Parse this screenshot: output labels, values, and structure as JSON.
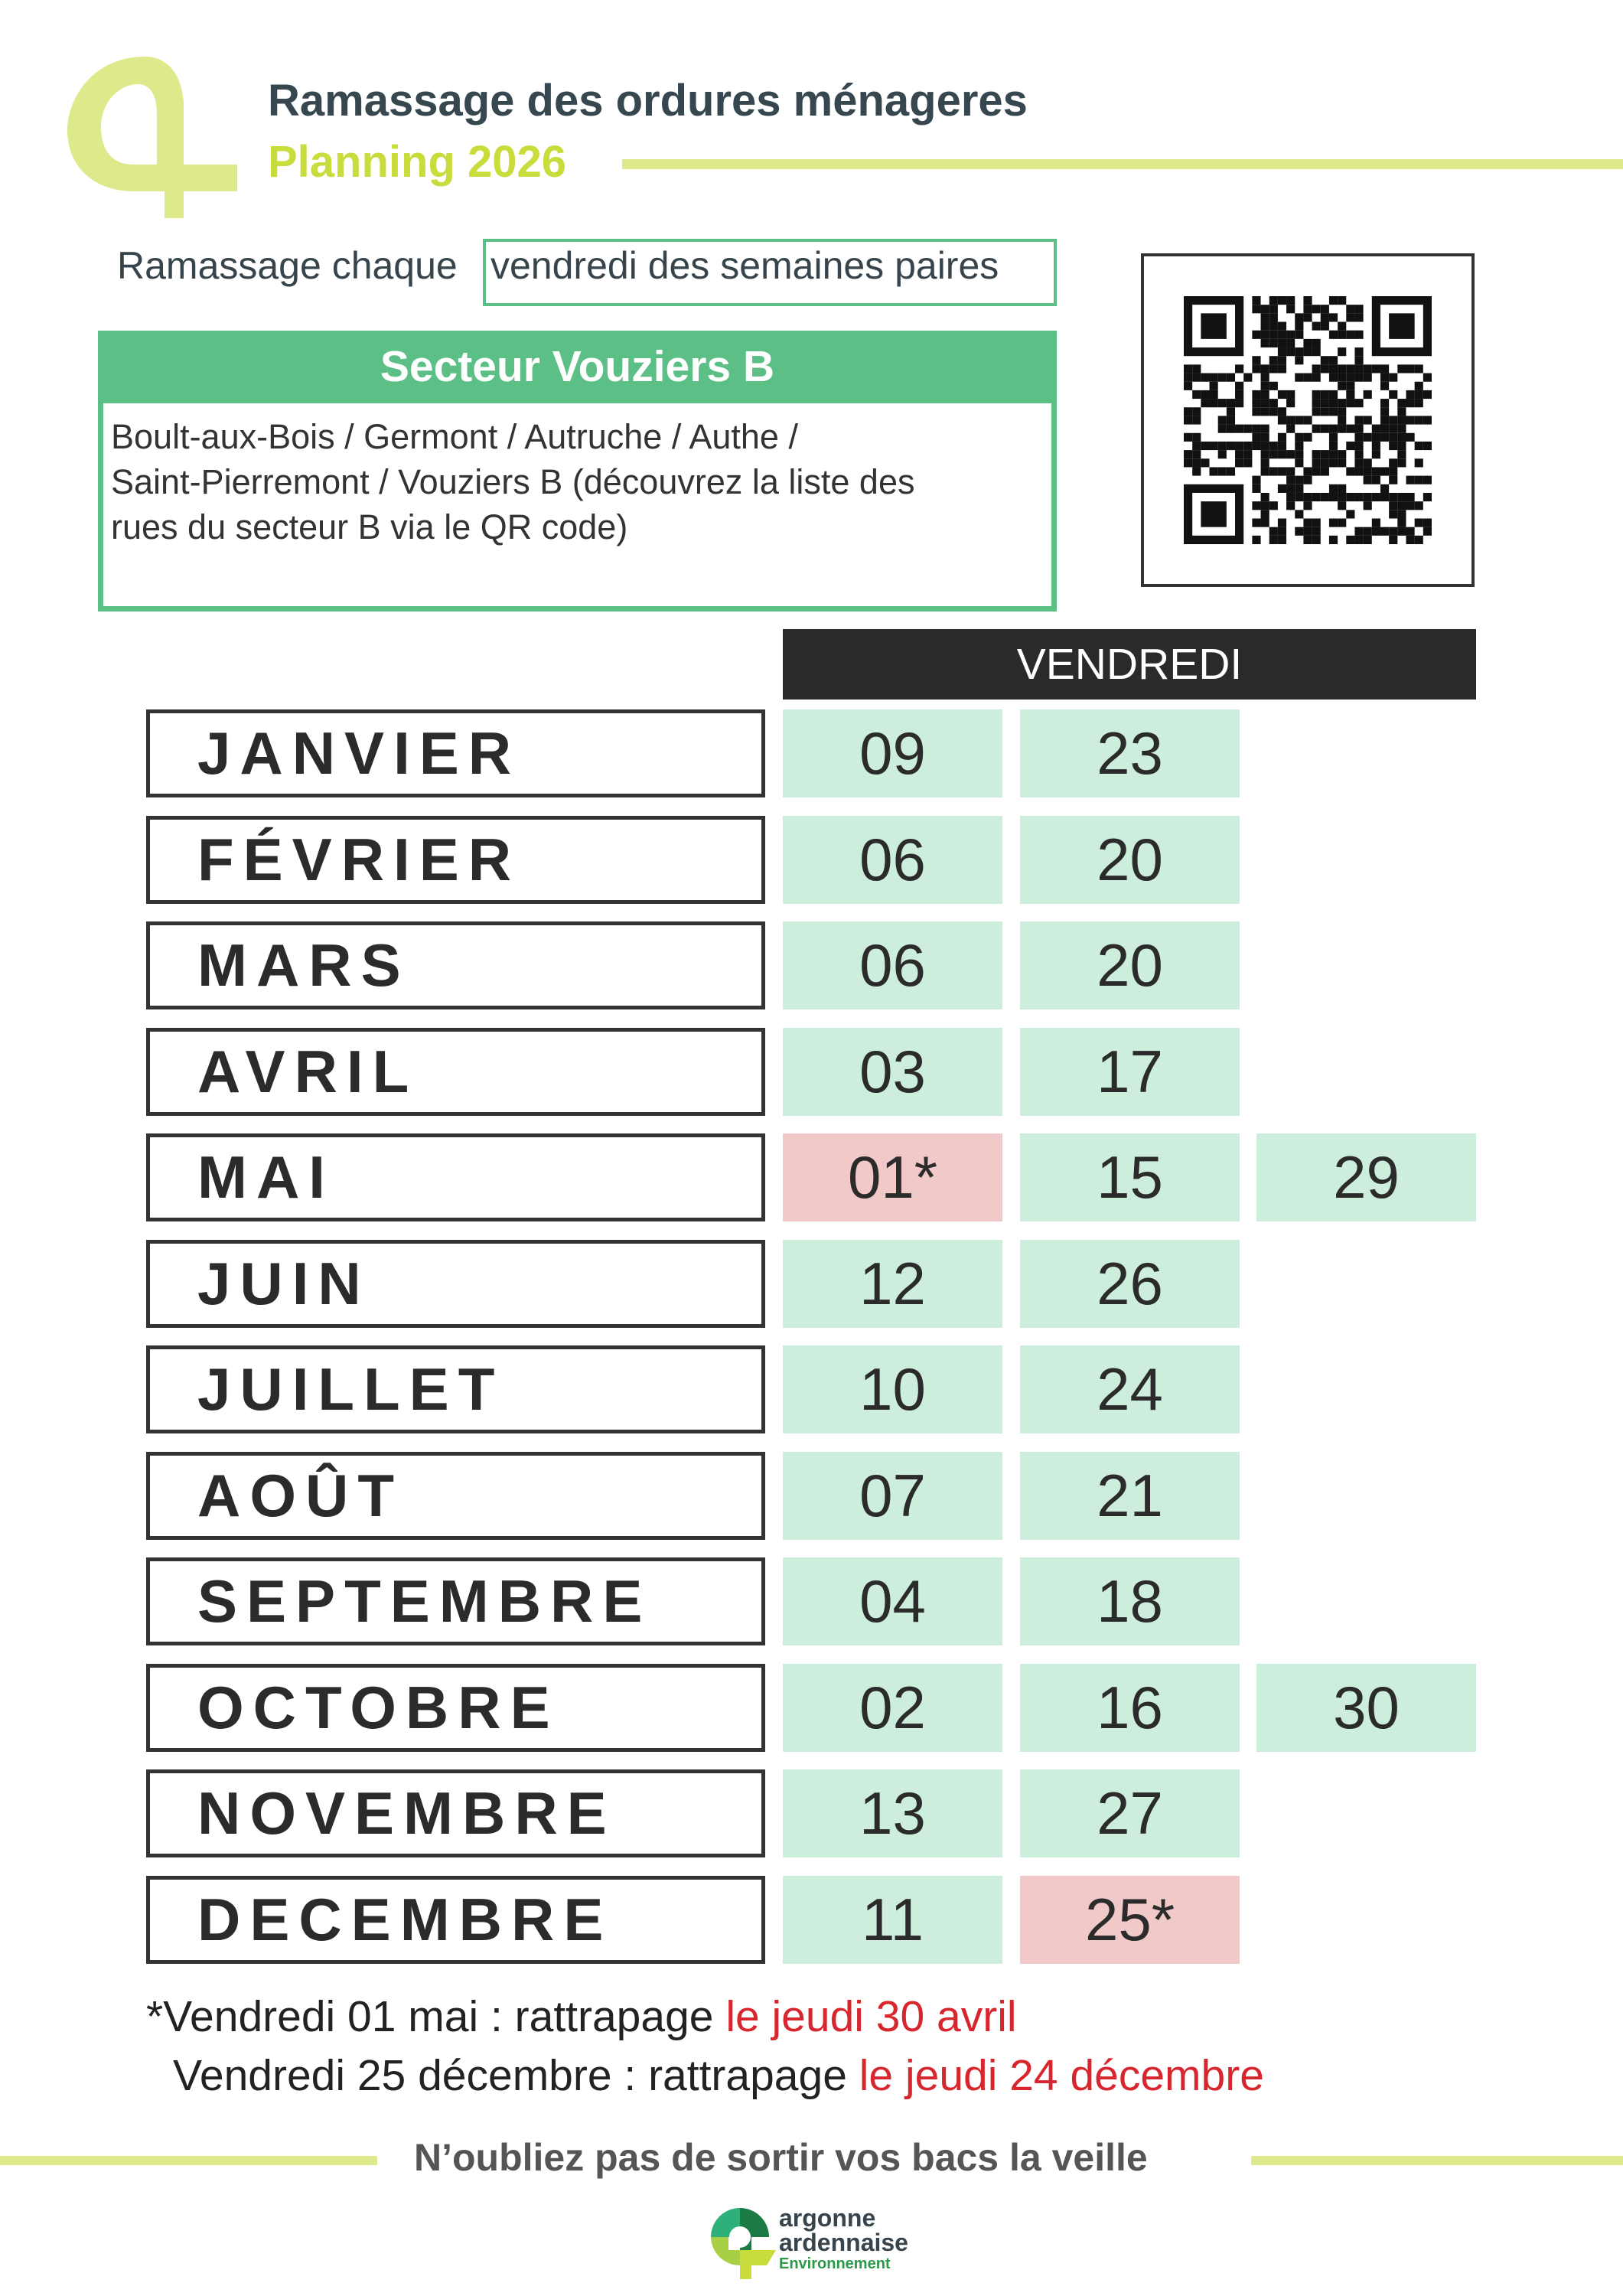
{
  "header": {
    "title": "Ramassage des ordures ménageres",
    "subtitle": "Planning 2026",
    "logo_color": "#dde98a"
  },
  "frequency": {
    "lead": "Ramassage chaque",
    "highlight": "vendredi des semaines paires"
  },
  "sector": {
    "title": "Secteur Vouziers B",
    "lines": [
      "Boult-aux-Bois / Germont / Autruche / Authe /",
      "Saint-Pierremont / Vouziers B (découvrez la liste des",
      "rues du secteur B via le QR code)"
    ]
  },
  "qr_code": {
    "icon": "qr-code"
  },
  "schedule": {
    "day_header": "VENDREDI",
    "months": [
      {
        "name": "JANVIER",
        "dates": [
          {
            "d": "09"
          },
          {
            "d": "23"
          }
        ]
      },
      {
        "name": "FÉVRIER",
        "dates": [
          {
            "d": "06"
          },
          {
            "d": "20"
          }
        ]
      },
      {
        "name": "MARS",
        "dates": [
          {
            "d": "06"
          },
          {
            "d": "20"
          }
        ]
      },
      {
        "name": "AVRIL",
        "dates": [
          {
            "d": "03"
          },
          {
            "d": "17"
          }
        ]
      },
      {
        "name": "MAI",
        "dates": [
          {
            "d": "01*",
            "special": true
          },
          {
            "d": "15"
          },
          {
            "d": "29"
          }
        ]
      },
      {
        "name": "JUIN",
        "dates": [
          {
            "d": "12"
          },
          {
            "d": "26"
          }
        ]
      },
      {
        "name": "JUILLET",
        "dates": [
          {
            "d": "10"
          },
          {
            "d": "24"
          }
        ]
      },
      {
        "name": "AOÛT",
        "dates": [
          {
            "d": "07"
          },
          {
            "d": "21"
          }
        ]
      },
      {
        "name": "SEPTEMBRE",
        "dates": [
          {
            "d": "04"
          },
          {
            "d": "18"
          }
        ]
      },
      {
        "name": "OCTOBRE",
        "dates": [
          {
            "d": "02"
          },
          {
            "d": "16"
          },
          {
            "d": "30"
          }
        ]
      },
      {
        "name": "NOVEMBRE",
        "dates": [
          {
            "d": "13"
          },
          {
            "d": "27"
          }
        ]
      },
      {
        "name": "DECEMBRE",
        "dates": [
          {
            "d": "11"
          },
          {
            "d": "25*",
            "special": true
          }
        ]
      }
    ],
    "colors": {
      "normal": "#cdeedd",
      "special": "#f2c9c9"
    }
  },
  "notes": [
    {
      "text": "*Vendredi 01 mai : rattrapage ",
      "highlight": "le jeudi 30 avril"
    },
    {
      "text": "Vendredi 25 décembre : rattrapage ",
      "highlight": "le jeudi 24 décembre"
    }
  ],
  "footer": {
    "reminder": "N’oubliez pas de sortir vos bacs la veille",
    "brand": {
      "line1": "argonne",
      "line2": "ardennaise",
      "line3": "Environnement"
    }
  }
}
